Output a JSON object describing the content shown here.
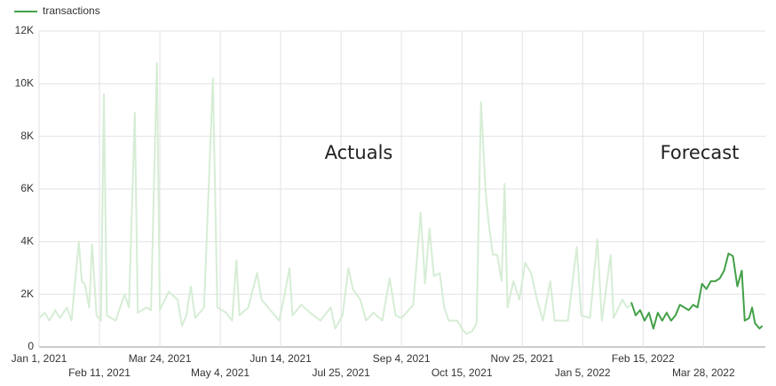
{
  "chart_data": {
    "type": "line",
    "annotations": [
      "Actuals",
      "Forecast"
    ],
    "xlim": [
      "2021-01-01",
      "2022-05-09"
    ],
    "xticks": [
      {
        "value": "2021-01-01",
        "label": "Jan 1, 2021"
      },
      {
        "value": "2021-02-11",
        "label": "Feb 11, 2021"
      },
      {
        "value": "2021-03-24",
        "label": "Mar 24, 2021"
      },
      {
        "value": "2021-05-04",
        "label": "May 4, 2021"
      },
      {
        "value": "2021-06-14",
        "label": "Jun 14, 2021"
      },
      {
        "value": "2021-07-25",
        "label": "Jul 25, 2021"
      },
      {
        "value": "2021-09-04",
        "label": "Sep 4, 2021"
      },
      {
        "value": "2021-10-15",
        "label": "Oct 15, 2021"
      },
      {
        "value": "2021-11-25",
        "label": "Nov 25, 2021"
      },
      {
        "value": "2022-01-05",
        "label": "Jan 5, 2022"
      },
      {
        "value": "2022-02-15",
        "label": "Feb 15, 2022"
      },
      {
        "value": "2022-03-28",
        "label": "Mar 28, 2022"
      }
    ],
    "ylim": [
      0,
      12000
    ],
    "yticks": [
      0,
      {
        "value": 2000,
        "label": "2K"
      },
      {
        "value": 4000,
        "label": "4K"
      },
      {
        "value": 6000,
        "label": "6K"
      },
      {
        "value": 8000,
        "label": "8K"
      },
      {
        "value": 10000,
        "label": "10K"
      },
      {
        "value": 12000,
        "label": "12K"
      }
    ],
    "grid": true,
    "series": [
      {
        "color": "#d6edd5",
        "x": [
          "2021-01-01",
          "2021-01-05",
          "2021-01-08",
          "2021-01-12",
          "2021-01-15",
          "2021-01-20",
          "2021-01-23",
          "2021-01-28",
          "2021-01-30",
          "2021-02-01",
          "2021-02-04",
          "2021-02-06",
          "2021-02-09",
          "2021-02-12",
          "2021-02-14",
          "2021-02-16",
          "2021-02-22",
          "2021-02-28",
          "2021-03-03",
          "2021-03-07",
          "2021-03-09",
          "2021-03-15",
          "2021-03-18",
          "2021-03-22",
          "2021-03-24",
          "2021-03-30",
          "2021-04-05",
          "2021-04-08",
          "2021-04-11",
          "2021-04-14",
          "2021-04-17",
          "2021-04-23",
          "2021-04-29",
          "2021-05-02",
          "2021-05-08",
          "2021-05-12",
          "2021-05-15",
          "2021-05-17",
          "2021-05-23",
          "2021-05-29",
          "2021-06-01",
          "2021-06-07",
          "2021-06-13",
          "2021-06-16",
          "2021-06-20",
          "2021-06-22",
          "2021-06-28",
          "2021-07-04",
          "2021-07-11",
          "2021-07-18",
          "2021-07-21",
          "2021-07-26",
          "2021-07-30",
          "2021-08-02",
          "2021-08-07",
          "2021-08-11",
          "2021-08-16",
          "2021-08-22",
          "2021-08-27",
          "2021-08-31",
          "2021-09-04",
          "2021-09-12",
          "2021-09-17",
          "2021-09-20",
          "2021-09-23",
          "2021-09-26",
          "2021-09-30",
          "2021-10-03",
          "2021-10-06",
          "2021-10-12",
          "2021-10-15",
          "2021-10-18",
          "2021-10-22",
          "2021-10-25",
          "2021-10-28",
          "2021-10-31",
          "2021-11-02",
          "2021-11-05",
          "2021-11-08",
          "2021-11-11",
          "2021-11-13",
          "2021-11-15",
          "2021-11-19",
          "2021-11-23",
          "2021-11-27",
          "2021-12-01",
          "2021-12-05",
          "2021-12-09",
          "2021-12-14",
          "2021-12-17",
          "2021-12-26",
          "2022-01-01",
          "2022-01-04",
          "2022-01-10",
          "2022-01-15",
          "2022-01-18",
          "2022-01-24",
          "2022-01-26",
          "2022-02-01",
          "2022-02-04",
          "2022-02-07"
        ],
        "values": [
          1100,
          1300,
          1000,
          1400,
          1100,
          1500,
          1000,
          4000,
          2500,
          2400,
          1500,
          3900,
          1200,
          1000,
          9600,
          1200,
          1000,
          2000,
          1500,
          8900,
          1300,
          1500,
          1400,
          10800,
          1400,
          2100,
          1800,
          800,
          1200,
          2300,
          1100,
          1500,
          10200,
          1500,
          1300,
          1000,
          3300,
          1200,
          1500,
          2800,
          1800,
          1400,
          1000,
          1800,
          3000,
          1200,
          1600,
          1300,
          1000,
          1500,
          700,
          1200,
          3000,
          2200,
          1800,
          1000,
          1300,
          1000,
          2600,
          1200,
          1100,
          1600,
          5100,
          2400,
          4500,
          2700,
          2800,
          1500,
          1000,
          1000,
          700,
          500,
          600,
          900,
          9300,
          6000,
          4800,
          3500,
          3500,
          2500,
          6200,
          1500,
          2500,
          1800,
          3200,
          2800,
          1800,
          1000,
          2500,
          1000,
          1000,
          3800,
          1200,
          1100,
          4100,
          1000,
          3500,
          1100,
          1800,
          1500,
          1600
        ]
      },
      {
        "name": "transactions",
        "color": "#43a047",
        "x": [
          "2022-02-07",
          "2022-02-10",
          "2022-02-13",
          "2022-02-16",
          "2022-02-19",
          "2022-02-22",
          "2022-02-25",
          "2022-02-28",
          "2022-03-03",
          "2022-03-06",
          "2022-03-09",
          "2022-03-12",
          "2022-03-15",
          "2022-03-18",
          "2022-03-21",
          "2022-03-24",
          "2022-03-27",
          "2022-03-30",
          "2022-04-02",
          "2022-04-05",
          "2022-04-08",
          "2022-04-11",
          "2022-04-14",
          "2022-04-17",
          "2022-04-20",
          "2022-04-23",
          "2022-04-25",
          "2022-04-28",
          "2022-04-30",
          "2022-05-02",
          "2022-05-05",
          "2022-05-07"
        ],
        "values": [
          1700,
          1200,
          1400,
          1000,
          1300,
          700,
          1300,
          1000,
          1300,
          1000,
          1200,
          1600,
          1500,
          1400,
          1600,
          1500,
          2400,
          2200,
          2500,
          2500,
          2600,
          2900,
          3550,
          3450,
          2300,
          2900,
          1000,
          1100,
          1500,
          900,
          700,
          800
        ]
      }
    ]
  }
}
